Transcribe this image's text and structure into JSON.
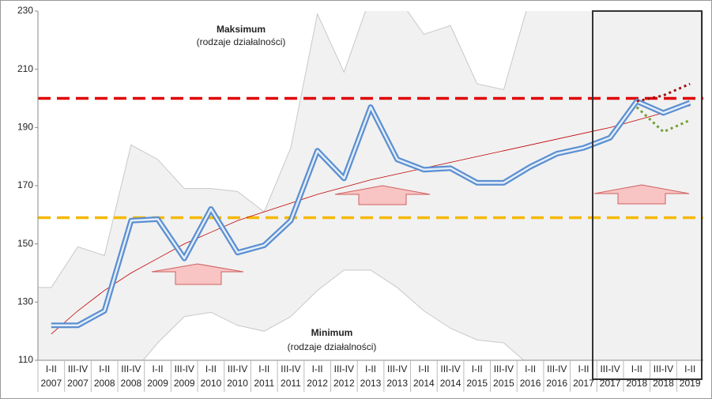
{
  "chart_data": {
    "type": "line",
    "annotations": [
      "Maksimum",
      "(rodzaje działalności)",
      "Minimum",
      "(rodzaje działalności)"
    ],
    "categories": [
      [
        "I-II",
        "2007"
      ],
      [
        "III-IV",
        "2007"
      ],
      [
        "I-II",
        "2008"
      ],
      [
        "III-IV",
        "2008"
      ],
      [
        "I-II",
        "2009"
      ],
      [
        "III-IV",
        "2009"
      ],
      [
        "I-II",
        "2010"
      ],
      [
        "III-IV",
        "2010"
      ],
      [
        "I-II",
        "2011"
      ],
      [
        "III-IV",
        "2011"
      ],
      [
        "I-II",
        "2012"
      ],
      [
        "III-IV",
        "2012"
      ],
      [
        "I-II",
        "2013"
      ],
      [
        "III-IV",
        "2013"
      ],
      [
        "I-II",
        "2014"
      ],
      [
        "III-IV",
        "2014"
      ],
      [
        "I-II",
        "2015"
      ],
      [
        "III-IV",
        "2015"
      ],
      [
        "I-II",
        "2016"
      ],
      [
        "III-IV",
        "2016"
      ],
      [
        "I-II",
        "2017"
      ],
      [
        "III-IV",
        "2017"
      ],
      [
        "I-II",
        "2018"
      ],
      [
        "III-IV",
        "2018"
      ],
      [
        "I-II",
        "2019"
      ]
    ],
    "band": {
      "color": "#f1f1f1",
      "max": [
        135,
        149,
        146,
        184,
        179,
        169,
        169,
        168,
        161,
        183,
        229,
        209,
        235,
        235,
        222,
        225,
        205,
        203,
        235,
        235,
        235,
        235,
        235,
        235,
        235
      ],
      "min": [
        105,
        105,
        105,
        105,
        116,
        125,
        126.5,
        122,
        120,
        125,
        134,
        141,
        141,
        135,
        127,
        121,
        117,
        116,
        108,
        105,
        105,
        105,
        105,
        105,
        105
      ]
    },
    "series": [
      {
        "color": "#c00000",
        "style": "trend",
        "values": [
          119,
          127,
          134,
          140,
          145,
          150,
          154,
          158,
          161,
          164,
          167,
          169.5,
          172,
          174,
          176,
          178,
          180,
          182,
          184,
          186,
          188,
          190,
          192.5,
          195,
          197.5
        ]
      },
      {
        "color": "#5b8fd0",
        "style": "main",
        "values": [
          122,
          122,
          127,
          158,
          158.5,
          145,
          162,
          147,
          149.5,
          158,
          182,
          172.5,
          197,
          179,
          175.5,
          176,
          171,
          171,
          176.5,
          181,
          183,
          186.5,
          199,
          195,
          198.5
        ]
      },
      {
        "color": "#a01010",
        "style": "dotted",
        "values": [
          null,
          null,
          null,
          null,
          null,
          null,
          null,
          null,
          null,
          null,
          null,
          null,
          null,
          null,
          null,
          null,
          null,
          null,
          null,
          null,
          null,
          null,
          199,
          201,
          205
        ]
      },
      {
        "color": "#70a030",
        "style": "dotted",
        "values": [
          null,
          null,
          null,
          null,
          null,
          null,
          null,
          null,
          null,
          null,
          null,
          null,
          null,
          null,
          null,
          null,
          null,
          null,
          null,
          null,
          null,
          null,
          197,
          188.5,
          192.5
        ]
      }
    ],
    "hlines": [
      {
        "value": 200,
        "color": "#e00000"
      },
      {
        "value": 159,
        "color": "#f5b800"
      }
    ],
    "ylim": [
      110,
      230
    ],
    "yticks": [
      110,
      130,
      150,
      170,
      190,
      210,
      230
    ]
  }
}
